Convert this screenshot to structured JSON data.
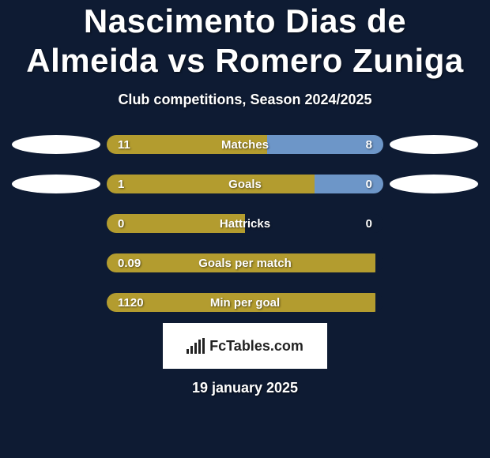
{
  "title": "Nascimento Dias de Almeida vs Romero Zuniga",
  "subtitle": "Club competitions, Season 2024/2025",
  "title_fontsize": 42,
  "title_lineheight": 50,
  "subtitle_fontsize": 18,
  "date_fontsize": 18,
  "colors": {
    "background": "#0e1b33",
    "left_bar": "#b39c2f",
    "right_bar": "#6d96c8",
    "oval": "#ffffff",
    "text": "#ffffff"
  },
  "bar": {
    "container_width": 350,
    "height": 24,
    "radius": 12,
    "label_fontsize": 15,
    "name_fontsize": 15
  },
  "stats": [
    {
      "name": "Matches",
      "left_val": "11",
      "right_val": "8",
      "left_pct": 58,
      "right_pct": 42,
      "left_oval": true,
      "right_oval": true
    },
    {
      "name": "Goals",
      "left_val": "1",
      "right_val": "0",
      "left_pct": 75,
      "right_pct": 25,
      "left_oval": true,
      "right_oval": true
    },
    {
      "name": "Hattricks",
      "left_val": "0",
      "right_val": "0",
      "left_pct": 50,
      "right_pct": 0,
      "left_oval": false,
      "right_oval": false
    },
    {
      "name": "Goals per match",
      "left_val": "0.09",
      "right_val": "",
      "left_pct": 97,
      "right_pct": 0,
      "left_oval": false,
      "right_oval": false
    },
    {
      "name": "Min per goal",
      "left_val": "1120",
      "right_val": "",
      "left_pct": 97,
      "right_pct": 0,
      "left_oval": false,
      "right_oval": false
    }
  ],
  "logo_text": "FcTables.com",
  "date": "19 january 2025"
}
